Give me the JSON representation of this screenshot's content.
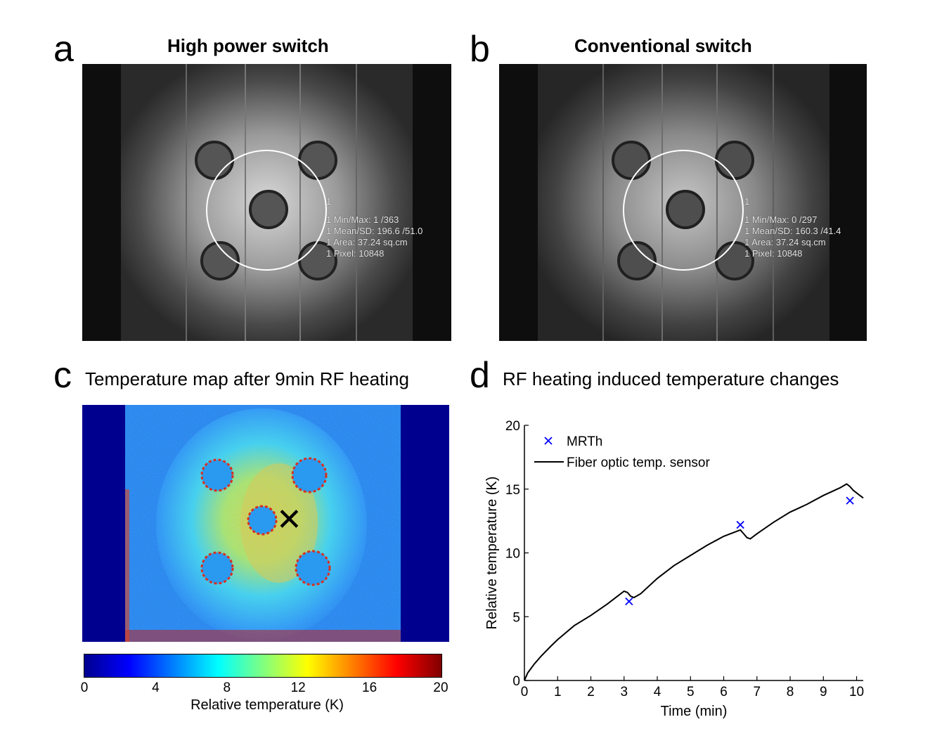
{
  "panel_a": {
    "letter": "a",
    "title": "High power switch",
    "roi_index": "1",
    "stats": [
      "1 Min/Max: 1 /363",
      "1 Mean/SD: 196.6 /51.0",
      "1 Area: 37.24 sq.cm",
      "1 Pixel: 10848"
    ]
  },
  "panel_b": {
    "letter": "b",
    "title": "Conventional switch",
    "roi_index": "1",
    "stats": [
      "1 Min/Max: 0 /297",
      "1 Mean/SD: 160.3 /41.4",
      "1 Area: 37.24 sq.cm",
      "1 Pixel: 10848"
    ]
  },
  "panel_c": {
    "letter": "c",
    "title": "Temperature map after 9min RF heating",
    "marker": "✕",
    "colorbar": {
      "ticks": [
        "0",
        "4",
        "8",
        "12",
        "16",
        "20"
      ],
      "label": "Relative temperature (K)",
      "colormap": "jet",
      "range": [
        0,
        20
      ]
    }
  },
  "panel_d": {
    "letter": "d",
    "title": "RF heating induced temperature changes",
    "chart_data": {
      "type": "line",
      "xlabel": "Time (min)",
      "ylabel": "Relative temperature (K)",
      "xlim": [
        0,
        10.2
      ],
      "ylim": [
        0,
        20
      ],
      "xticks": [
        0,
        1,
        2,
        3,
        4,
        5,
        6,
        7,
        8,
        9,
        10
      ],
      "yticks": [
        0,
        5,
        10,
        15,
        20
      ],
      "legend_position": "top-left",
      "series": [
        {
          "name": "MRTh",
          "kind": "scatter",
          "marker": "x",
          "color": "#0000ff",
          "x": [
            3.15,
            6.5,
            9.8
          ],
          "y": [
            6.2,
            12.2,
            14.1
          ]
        },
        {
          "name": "Fiber optic temp. sensor",
          "kind": "line",
          "color": "#000000",
          "x": [
            0,
            0.1,
            0.3,
            0.5,
            0.8,
            1.0,
            1.5,
            2.0,
            2.5,
            2.9,
            3.0,
            3.1,
            3.2,
            3.3,
            3.5,
            4.0,
            4.5,
            5.0,
            5.5,
            6.0,
            6.4,
            6.5,
            6.6,
            6.7,
            6.8,
            7.0,
            7.5,
            8.0,
            8.5,
            9.0,
            9.5,
            9.7,
            9.8,
            9.9,
            10.0,
            10.2
          ],
          "y": [
            0,
            0.6,
            1.3,
            1.9,
            2.7,
            3.2,
            4.3,
            5.1,
            6.0,
            6.8,
            7.0,
            6.9,
            6.6,
            6.5,
            6.8,
            8.0,
            9.0,
            9.8,
            10.6,
            11.3,
            11.7,
            11.8,
            11.5,
            11.2,
            11.1,
            11.5,
            12.4,
            13.2,
            13.8,
            14.5,
            15.1,
            15.4,
            15.2,
            14.9,
            14.7,
            14.3
          ]
        }
      ]
    }
  }
}
